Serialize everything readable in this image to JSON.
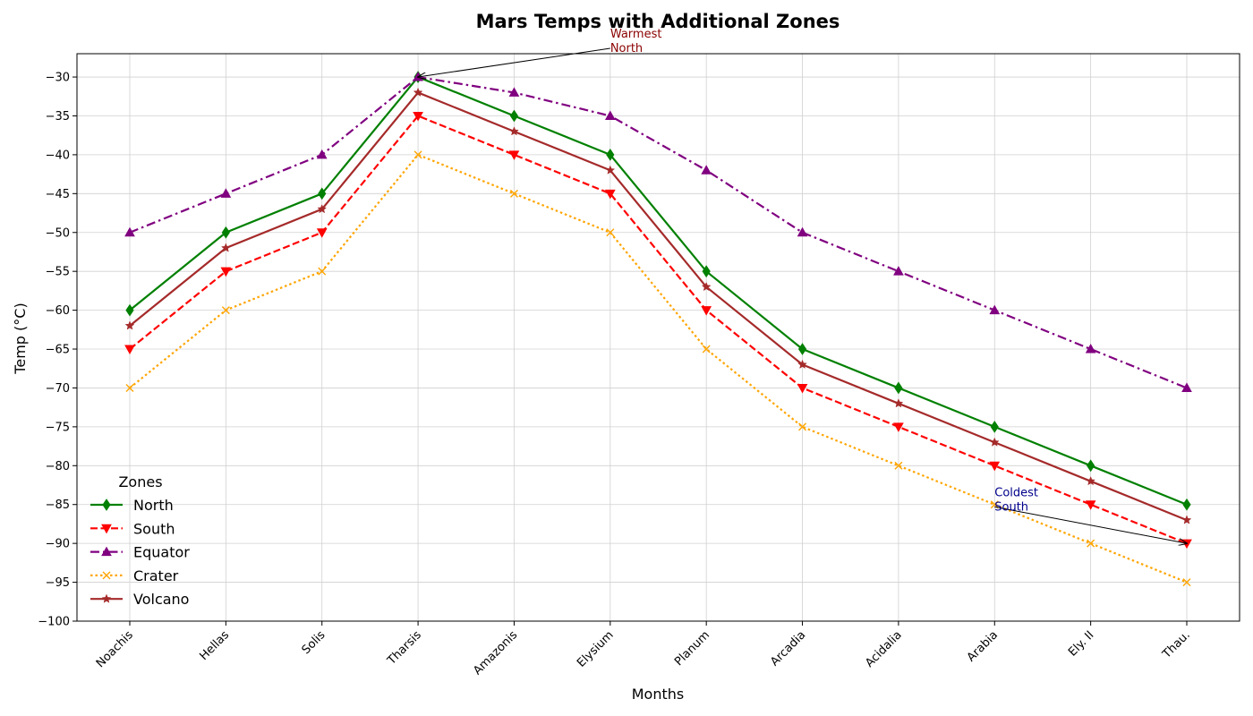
{
  "chart_data": {
    "type": "line",
    "title": "Mars Temps with Additional Zones",
    "xlabel": "Months",
    "ylabel": "Temp (°C)",
    "categories": [
      "Noachis",
      "Hellas",
      "Solis",
      "Tharsis",
      "Amazonis",
      "Elysium",
      "Planum",
      "Arcadia",
      "Acidalia",
      "Arabia",
      "Ely. II",
      "Thau."
    ],
    "ylim": [
      -100,
      -27
    ],
    "yticks": [
      -100,
      -95,
      -90,
      -85,
      -80,
      -75,
      -70,
      -65,
      -60,
      -55,
      -50,
      -45,
      -40,
      -35,
      -30
    ],
    "grid": true,
    "legend": {
      "title": "Zones",
      "placement": "lower-left"
    },
    "series": [
      {
        "name": "North",
        "color": "#008000",
        "linestyle": "solid",
        "marker": "diamond",
        "values": [
          -60,
          -50,
          -45,
          -30,
          -35,
          -40,
          -55,
          -65,
          -70,
          -75,
          -80,
          -85
        ]
      },
      {
        "name": "South",
        "color": "#ff0000",
        "linestyle": "dashed",
        "marker": "triangle-down",
        "values": [
          -65,
          -55,
          -50,
          -35,
          -40,
          -45,
          -60,
          -70,
          -75,
          -80,
          -85,
          -90
        ]
      },
      {
        "name": "Equator",
        "color": "#800080",
        "linestyle": "dashdot",
        "marker": "triangle-up",
        "values": [
          -50,
          -45,
          -40,
          -30,
          -32,
          -35,
          -42,
          -50,
          -55,
          -60,
          -65,
          -70
        ]
      },
      {
        "name": "Crater",
        "color": "#ffa500",
        "linestyle": "dotted",
        "marker": "x",
        "values": [
          -70,
          -60,
          -55,
          -40,
          -45,
          -50,
          -65,
          -75,
          -80,
          -85,
          -90,
          -95
        ]
      },
      {
        "name": "Volcano",
        "color": "#a52a2a",
        "linestyle": "solid",
        "marker": "star",
        "values": [
          -62,
          -52,
          -47,
          -32,
          -37,
          -42,
          -57,
          -67,
          -72,
          -77,
          -82,
          -87
        ]
      }
    ],
    "annotations": [
      {
        "text": [
          "Warmest",
          "North"
        ],
        "color": "#8b0000",
        "target": {
          "category": "Tharsis",
          "value": -30
        },
        "text_at": {
          "category_index": 5,
          "value": -25.5
        }
      },
      {
        "text": [
          "Coldest",
          "South"
        ],
        "color": "#00008b",
        "target": {
          "category": "Thau.",
          "value": -90
        },
        "text_at": {
          "category_index": 9,
          "value": -84.5
        }
      }
    ]
  }
}
